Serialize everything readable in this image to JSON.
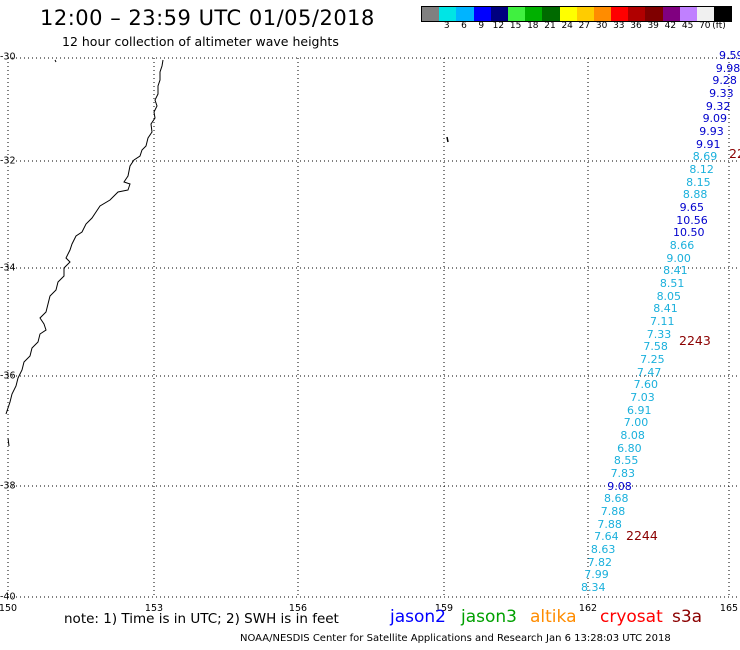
{
  "header": {
    "title": "12:00 – 23:59 UTC 01/05/2018",
    "subtitle": "12 hour collection of altimeter wave heights"
  },
  "legend": {
    "swatches": [
      {
        "color": "#808080",
        "label": ""
      },
      {
        "color": "#00e5e5",
        "label": "3"
      },
      {
        "color": "#00b4ff",
        "label": "6"
      },
      {
        "color": "#0000ff",
        "label": "9"
      },
      {
        "color": "#00007f",
        "label": "12"
      },
      {
        "color": "#40f040",
        "label": "15"
      },
      {
        "color": "#00b000",
        "label": "18"
      },
      {
        "color": "#006a00",
        "label": "21"
      },
      {
        "color": "#ffff00",
        "label": "24"
      },
      {
        "color": "#ffcc00",
        "label": "27"
      },
      {
        "color": "#ff8c00",
        "label": "30"
      },
      {
        "color": "#ff0000",
        "label": "33"
      },
      {
        "color": "#b00000",
        "label": "36"
      },
      {
        "color": "#7f0000",
        "label": "39"
      },
      {
        "color": "#800080",
        "label": "42"
      },
      {
        "color": "#c080ff",
        "label": "45"
      },
      {
        "color": "#f0f0f0",
        "label": "70"
      },
      {
        "color": "#000000",
        "label": ""
      }
    ],
    "unit_label": "(ft)"
  },
  "axes": {
    "lat_labels": [
      "-30",
      "-32",
      "-34",
      "-36",
      "-38",
      "-40"
    ],
    "lon_labels": [
      "150",
      "153",
      "156",
      "159",
      "162",
      "165"
    ],
    "lat_range": [
      -40,
      -30
    ],
    "lon_range": [
      150,
      165
    ],
    "grid": "dotted"
  },
  "wave_heights": [
    {
      "text": "9.59",
      "color": "#0000cd"
    },
    {
      "text": "9.98",
      "color": "#0000cd"
    },
    {
      "text": "9.28",
      "color": "#0000cd"
    },
    {
      "text": "9.33",
      "color": "#0000cd"
    },
    {
      "text": "9.32",
      "color": "#0000cd"
    },
    {
      "text": "9.09",
      "color": "#0000cd"
    },
    {
      "text": "9.93",
      "color": "#0000cd"
    },
    {
      "text": "9.91",
      "color": "#0000cd"
    },
    {
      "text": "8.69",
      "color": "#1ab0dc"
    },
    {
      "text": "8.12",
      "color": "#1ab0dc"
    },
    {
      "text": "8.15",
      "color": "#1ab0dc"
    },
    {
      "text": "8.88",
      "color": "#1ab0dc"
    },
    {
      "text": "9.65",
      "color": "#0000cd"
    },
    {
      "text": "10.56",
      "color": "#0000cd"
    },
    {
      "text": "10.50",
      "color": "#0000cd"
    },
    {
      "text": "8.66",
      "color": "#1ab0dc"
    },
    {
      "text": "9.00",
      "color": "#1ab0dc"
    },
    {
      "text": "8.41",
      "color": "#1ab0dc"
    },
    {
      "text": "8.51",
      "color": "#1ab0dc"
    },
    {
      "text": "8.05",
      "color": "#1ab0dc"
    },
    {
      "text": "8.41",
      "color": "#1ab0dc"
    },
    {
      "text": "7.11",
      "color": "#1ab0dc"
    },
    {
      "text": "7.33",
      "color": "#1ab0dc"
    },
    {
      "text": "7.58",
      "color": "#1ab0dc"
    },
    {
      "text": "7.25",
      "color": "#1ab0dc"
    },
    {
      "text": "7.47",
      "color": "#1ab0dc"
    },
    {
      "text": "7.60",
      "color": "#1ab0dc"
    },
    {
      "text": "7.03",
      "color": "#1ab0dc"
    },
    {
      "text": "6.91",
      "color": "#1ab0dc"
    },
    {
      "text": "7.00",
      "color": "#1ab0dc"
    },
    {
      "text": "8.08",
      "color": "#1ab0dc"
    },
    {
      "text": "6.80",
      "color": "#1ab0dc"
    },
    {
      "text": "8.55",
      "color": "#1ab0dc"
    },
    {
      "text": "7.83",
      "color": "#1ab0dc"
    },
    {
      "text": "9.08",
      "color": "#0000cd"
    },
    {
      "text": "8.68",
      "color": "#1ab0dc"
    },
    {
      "text": "7.88",
      "color": "#1ab0dc"
    },
    {
      "text": "7.88",
      "color": "#1ab0dc"
    },
    {
      "text": "7.64",
      "color": "#1ab0dc"
    },
    {
      "text": "8.63",
      "color": "#1ab0dc"
    },
    {
      "text": "7.82",
      "color": "#1ab0dc"
    },
    {
      "text": "7.99",
      "color": "#1ab0dc"
    },
    {
      "text": "8.34",
      "color": "#1ab0dc"
    }
  ],
  "pass_times": [
    "22",
    "2243",
    "2244"
  ],
  "note": "note:  1) Time is in UTC;  2) SWH is in feet",
  "satellites": [
    {
      "name": "jason2",
      "color": "#0000ff"
    },
    {
      "name": "jason3",
      "color": "#00a000"
    },
    {
      "name": "altika",
      "color": "#ff8c00"
    },
    {
      "name": "cryosat",
      "color": "#ff0000"
    },
    {
      "name": "s3a",
      "color": "#8b0000"
    }
  ],
  "footer": "NOAA/NESDIS Center for Satellite Applications and Research    Jan  6 13:28:03 UTC 2018"
}
